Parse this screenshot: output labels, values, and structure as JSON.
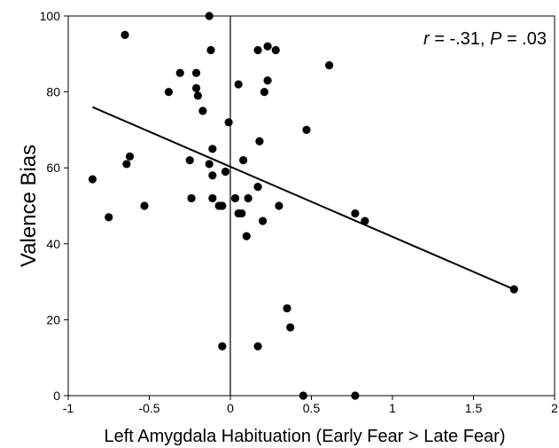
{
  "chart_data": {
    "type": "scatter",
    "title": "",
    "xlabel": "Left Amygdala Habituation (Early Fear > Late Fear)",
    "ylabel": "Valence Bias",
    "xlim": [
      -1,
      2
    ],
    "ylim": [
      0,
      100
    ],
    "xticks": [
      "-1",
      "-0.5",
      "0",
      "0.5",
      "1",
      "1.5",
      "2"
    ],
    "yticks": [
      "0",
      "20",
      "40",
      "60",
      "80",
      "100"
    ],
    "grid": false,
    "annotation": {
      "r_label": "r",
      "r_value": " = -.31, ",
      "p_label": "P",
      "p_value": " = .03"
    },
    "points": [
      {
        "x": -0.85,
        "y": 57
      },
      {
        "x": -0.75,
        "y": 47
      },
      {
        "x": -0.65,
        "y": 95
      },
      {
        "x": -0.64,
        "y": 61
      },
      {
        "x": -0.62,
        "y": 63
      },
      {
        "x": -0.53,
        "y": 50
      },
      {
        "x": -0.38,
        "y": 80
      },
      {
        "x": -0.31,
        "y": 85
      },
      {
        "x": -0.25,
        "y": 62
      },
      {
        "x": -0.24,
        "y": 52
      },
      {
        "x": -0.21,
        "y": 85
      },
      {
        "x": -0.21,
        "y": 81
      },
      {
        "x": -0.2,
        "y": 79
      },
      {
        "x": -0.17,
        "y": 75
      },
      {
        "x": -0.13,
        "y": 100
      },
      {
        "x": -0.12,
        "y": 91
      },
      {
        "x": -0.13,
        "y": 61
      },
      {
        "x": -0.11,
        "y": 65
      },
      {
        "x": -0.11,
        "y": 58
      },
      {
        "x": -0.11,
        "y": 52
      },
      {
        "x": -0.07,
        "y": 50
      },
      {
        "x": -0.05,
        "y": 50
      },
      {
        "x": -0.05,
        "y": 13
      },
      {
        "x": -0.03,
        "y": 59
      },
      {
        "x": -0.01,
        "y": 72
      },
      {
        "x": 0.03,
        "y": 52
      },
      {
        "x": 0.05,
        "y": 82
      },
      {
        "x": 0.05,
        "y": 48
      },
      {
        "x": 0.07,
        "y": 48
      },
      {
        "x": 0.08,
        "y": 62
      },
      {
        "x": 0.1,
        "y": 42
      },
      {
        "x": 0.11,
        "y": 52
      },
      {
        "x": 0.17,
        "y": 91
      },
      {
        "x": 0.17,
        "y": 55
      },
      {
        "x": 0.18,
        "y": 67
      },
      {
        "x": 0.17,
        "y": 13
      },
      {
        "x": 0.21,
        "y": 80
      },
      {
        "x": 0.2,
        "y": 46
      },
      {
        "x": 0.23,
        "y": 92
      },
      {
        "x": 0.23,
        "y": 83
      },
      {
        "x": 0.28,
        "y": 91
      },
      {
        "x": 0.3,
        "y": 50
      },
      {
        "x": 0.35,
        "y": 23
      },
      {
        "x": 0.37,
        "y": 18
      },
      {
        "x": 0.45,
        "y": 0
      },
      {
        "x": 0.47,
        "y": 70
      },
      {
        "x": 0.61,
        "y": 87
      },
      {
        "x": 0.77,
        "y": 48
      },
      {
        "x": 0.77,
        "y": 0
      },
      {
        "x": 0.83,
        "y": 46
      },
      {
        "x": 1.75,
        "y": 28
      }
    ],
    "fit_line": {
      "x": [
        -0.85,
        1.75
      ],
      "y": [
        76,
        28
      ]
    },
    "colors": {
      "points": "#000000",
      "line": "#000000",
      "axes": "#000000"
    }
  }
}
